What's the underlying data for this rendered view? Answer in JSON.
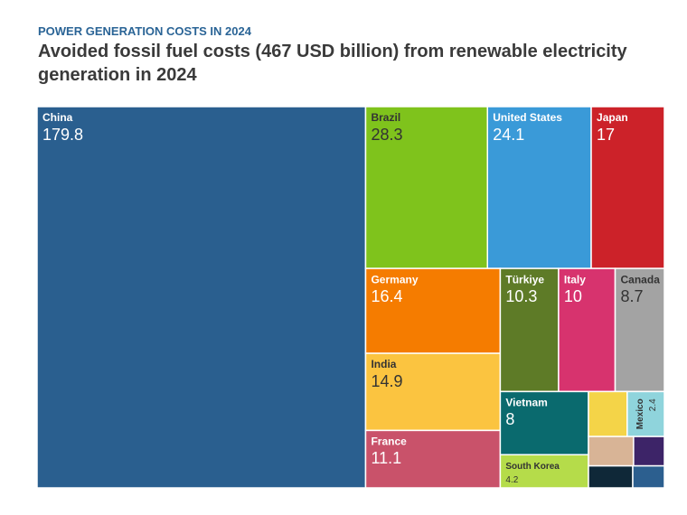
{
  "chart_data": {
    "type": "treemap",
    "subtitle": "POWER GENERATION COSTS IN 2024",
    "title": "Avoided fossil fuel costs (467 USD billion) from renewable electricity generation in 2024",
    "categories": [
      "China",
      "Brazil",
      "United States",
      "Japan",
      "Germany",
      "India",
      "France",
      "Türkiye",
      "Italy",
      "Canada",
      "Vietnam",
      "South Korea",
      null,
      "Mexico",
      null,
      null,
      null,
      null
    ],
    "values": [
      179.8,
      28.3,
      24.1,
      17,
      16.4,
      14.9,
      11.1,
      10.3,
      10,
      8.7,
      8,
      4.2,
      2.5,
      2.4,
      1.9,
      1.3,
      1.4,
      1.0
    ],
    "colors": [
      "#2a5f8f",
      "#7fc31c",
      "#3a9ad8",
      "#cc2229",
      "#f57c00",
      "#fbc440",
      "#c9526a",
      "#5e7b27",
      "#d7336e",
      "#a3a3a3",
      "#0a6a6e",
      "#b5dc4a",
      "#f4d448",
      "#8fd4dc",
      "#d8b496",
      "#3d2468",
      "#0f2838",
      "#2c5f8f"
    ]
  }
}
